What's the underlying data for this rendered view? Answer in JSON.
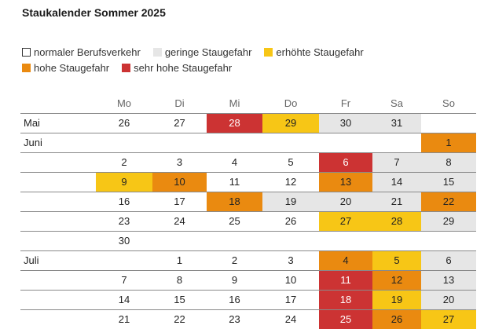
{
  "chart_data": {
    "type": "table",
    "title": "Staukalender Sommer 2025",
    "weekdays": [
      "Mo",
      "Di",
      "Mi",
      "Do",
      "Fr",
      "Sa",
      "So"
    ],
    "legend": [
      {
        "key": "normal",
        "label": "normaler Berufsverkehr",
        "color": "#ffffff"
      },
      {
        "key": "gering",
        "label": "geringe Staugefahr",
        "color": "#e6e6e6"
      },
      {
        "key": "erhoeht",
        "label": "erhöhte Staugefahr",
        "color": "#f7c616"
      },
      {
        "key": "hoch",
        "label": "hohe Staugefahr",
        "color": "#ea8a10"
      },
      {
        "key": "sehr_hoch",
        "label": "sehr hohe Staugefahr",
        "color": "#cc3333"
      }
    ],
    "rows": [
      {
        "label": "Mai",
        "cells": [
          [
            0,
            "26",
            "normal"
          ],
          [
            1,
            "27",
            "normal"
          ],
          [
            2,
            "28",
            "sehr_hoch"
          ],
          [
            3,
            "29",
            "erhoeht"
          ],
          [
            4,
            "30",
            "gering"
          ],
          [
            5,
            "31",
            "gering"
          ]
        ]
      },
      {
        "label": "Juni",
        "cells": [
          [
            6,
            "1",
            "hoch"
          ]
        ]
      },
      {
        "label": "",
        "cells": [
          [
            0,
            "2",
            "normal"
          ],
          [
            1,
            "3",
            "normal"
          ],
          [
            2,
            "4",
            "normal"
          ],
          [
            3,
            "5",
            "normal"
          ],
          [
            4,
            "6",
            "sehr_hoch"
          ],
          [
            5,
            "7",
            "gering"
          ],
          [
            6,
            "8",
            "gering"
          ]
        ]
      },
      {
        "label": "",
        "cells": [
          [
            0,
            "9",
            "erhoeht"
          ],
          [
            1,
            "10",
            "hoch"
          ],
          [
            2,
            "11",
            "normal"
          ],
          [
            3,
            "12",
            "normal"
          ],
          [
            4,
            "13",
            "hoch"
          ],
          [
            5,
            "14",
            "gering"
          ],
          [
            6,
            "15",
            "gering"
          ]
        ]
      },
      {
        "label": "",
        "cells": [
          [
            0,
            "16",
            "normal"
          ],
          [
            1,
            "17",
            "normal"
          ],
          [
            2,
            "18",
            "hoch"
          ],
          [
            3,
            "19",
            "gering"
          ],
          [
            4,
            "20",
            "gering"
          ],
          [
            5,
            "21",
            "gering"
          ],
          [
            6,
            "22",
            "hoch"
          ]
        ]
      },
      {
        "label": "",
        "cells": [
          [
            0,
            "23",
            "normal"
          ],
          [
            1,
            "24",
            "normal"
          ],
          [
            2,
            "25",
            "normal"
          ],
          [
            3,
            "26",
            "normal"
          ],
          [
            4,
            "27",
            "erhoeht"
          ],
          [
            5,
            "28",
            "erhoeht"
          ],
          [
            6,
            "29",
            "gering"
          ]
        ]
      },
      {
        "label": "",
        "cells": [
          [
            0,
            "30",
            "normal"
          ]
        ]
      },
      {
        "label": "Juli",
        "cells": [
          [
            1,
            "1",
            "normal"
          ],
          [
            2,
            "2",
            "normal"
          ],
          [
            3,
            "3",
            "normal"
          ],
          [
            4,
            "4",
            "hoch"
          ],
          [
            5,
            "5",
            "erhoeht"
          ],
          [
            6,
            "6",
            "gering"
          ]
        ]
      },
      {
        "label": "",
        "cells": [
          [
            0,
            "7",
            "normal"
          ],
          [
            1,
            "8",
            "normal"
          ],
          [
            2,
            "9",
            "normal"
          ],
          [
            3,
            "10",
            "normal"
          ],
          [
            4,
            "11",
            "sehr_hoch"
          ],
          [
            5,
            "12",
            "hoch"
          ],
          [
            6,
            "13",
            "gering"
          ]
        ]
      },
      {
        "label": "",
        "cells": [
          [
            0,
            "14",
            "normal"
          ],
          [
            1,
            "15",
            "normal"
          ],
          [
            2,
            "16",
            "normal"
          ],
          [
            3,
            "17",
            "normal"
          ],
          [
            4,
            "18",
            "sehr_hoch"
          ],
          [
            5,
            "19",
            "erhoeht"
          ],
          [
            6,
            "20",
            "gering"
          ]
        ]
      },
      {
        "label": "",
        "cells": [
          [
            0,
            "21",
            "normal"
          ],
          [
            1,
            "22",
            "normal"
          ],
          [
            2,
            "23",
            "normal"
          ],
          [
            3,
            "24",
            "normal"
          ],
          [
            4,
            "25",
            "sehr_hoch"
          ],
          [
            5,
            "26",
            "hoch"
          ],
          [
            6,
            "27",
            "erhoeht"
          ]
        ]
      }
    ]
  }
}
